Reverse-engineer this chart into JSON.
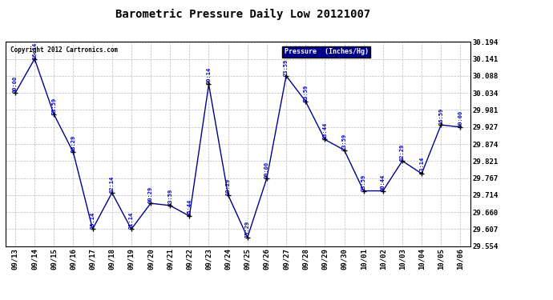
{
  "title": "Barometric Pressure Daily Low 20121007",
  "copyright": "Copyright 2012 Cartronics.com",
  "legend_label": "Pressure  (Inches/Hg)",
  "line_color": "#00008B",
  "marker_color": "#000000",
  "background_color": "#ffffff",
  "plot_bg_color": "#ffffff",
  "grid_color": "#bbbbbb",
  "label_color": "#0000CC",
  "border_color": "#000000",
  "ylim": [
    29.554,
    30.194
  ],
  "yticks": [
    29.554,
    29.607,
    29.66,
    29.714,
    29.767,
    29.821,
    29.874,
    29.927,
    29.981,
    30.034,
    30.088,
    30.141,
    30.194
  ],
  "x_labels": [
    "09/13",
    "09/14",
    "09/15",
    "09/16",
    "09/17",
    "09/18",
    "09/19",
    "09/20",
    "09/21",
    "09/22",
    "09/23",
    "09/24",
    "09/25",
    "09/26",
    "09/27",
    "09/28",
    "09/29",
    "09/30",
    "10/01",
    "10/02",
    "10/03",
    "10/04",
    "10/05",
    "10/06"
  ],
  "data_points": [
    {
      "date": "09/13",
      "time": "00:00",
      "value": 30.034
    },
    {
      "date": "09/14",
      "time": "16:14",
      "value": 30.141
    },
    {
      "date": "09/15",
      "time": "23:59",
      "value": 29.967
    },
    {
      "date": "09/16",
      "time": "18:29",
      "value": 29.848
    },
    {
      "date": "09/17",
      "time": "15:14",
      "value": 29.607
    },
    {
      "date": "09/18",
      "time": "02:14",
      "value": 29.721
    },
    {
      "date": "09/19",
      "time": "21:14",
      "value": 29.607
    },
    {
      "date": "09/20",
      "time": "00:29",
      "value": 29.688
    },
    {
      "date": "09/21",
      "time": "23:59",
      "value": 29.681
    },
    {
      "date": "09/22",
      "time": "05:44",
      "value": 29.648
    },
    {
      "date": "09/23",
      "time": "00:14",
      "value": 30.061
    },
    {
      "date": "09/24",
      "time": "18:29",
      "value": 29.714
    },
    {
      "date": "09/25",
      "time": "15:29",
      "value": 29.581
    },
    {
      "date": "09/26",
      "time": "00:00",
      "value": 29.767
    },
    {
      "date": "09/27",
      "time": "23:59",
      "value": 30.088
    },
    {
      "date": "09/28",
      "time": "23:59",
      "value": 30.008
    },
    {
      "date": "09/29",
      "time": "13:44",
      "value": 29.888
    },
    {
      "date": "09/30",
      "time": "23:59",
      "value": 29.855
    },
    {
      "date": "10/01",
      "time": "23:59",
      "value": 29.727
    },
    {
      "date": "10/02",
      "time": "00:44",
      "value": 29.727
    },
    {
      "date": "10/03",
      "time": "02:29",
      "value": 29.821
    },
    {
      "date": "10/04",
      "time": "13:14",
      "value": 29.781
    },
    {
      "date": "10/05",
      "time": "16:59",
      "value": 29.934
    },
    {
      "date": "10/06",
      "time": "00:00",
      "value": 29.927
    }
  ]
}
